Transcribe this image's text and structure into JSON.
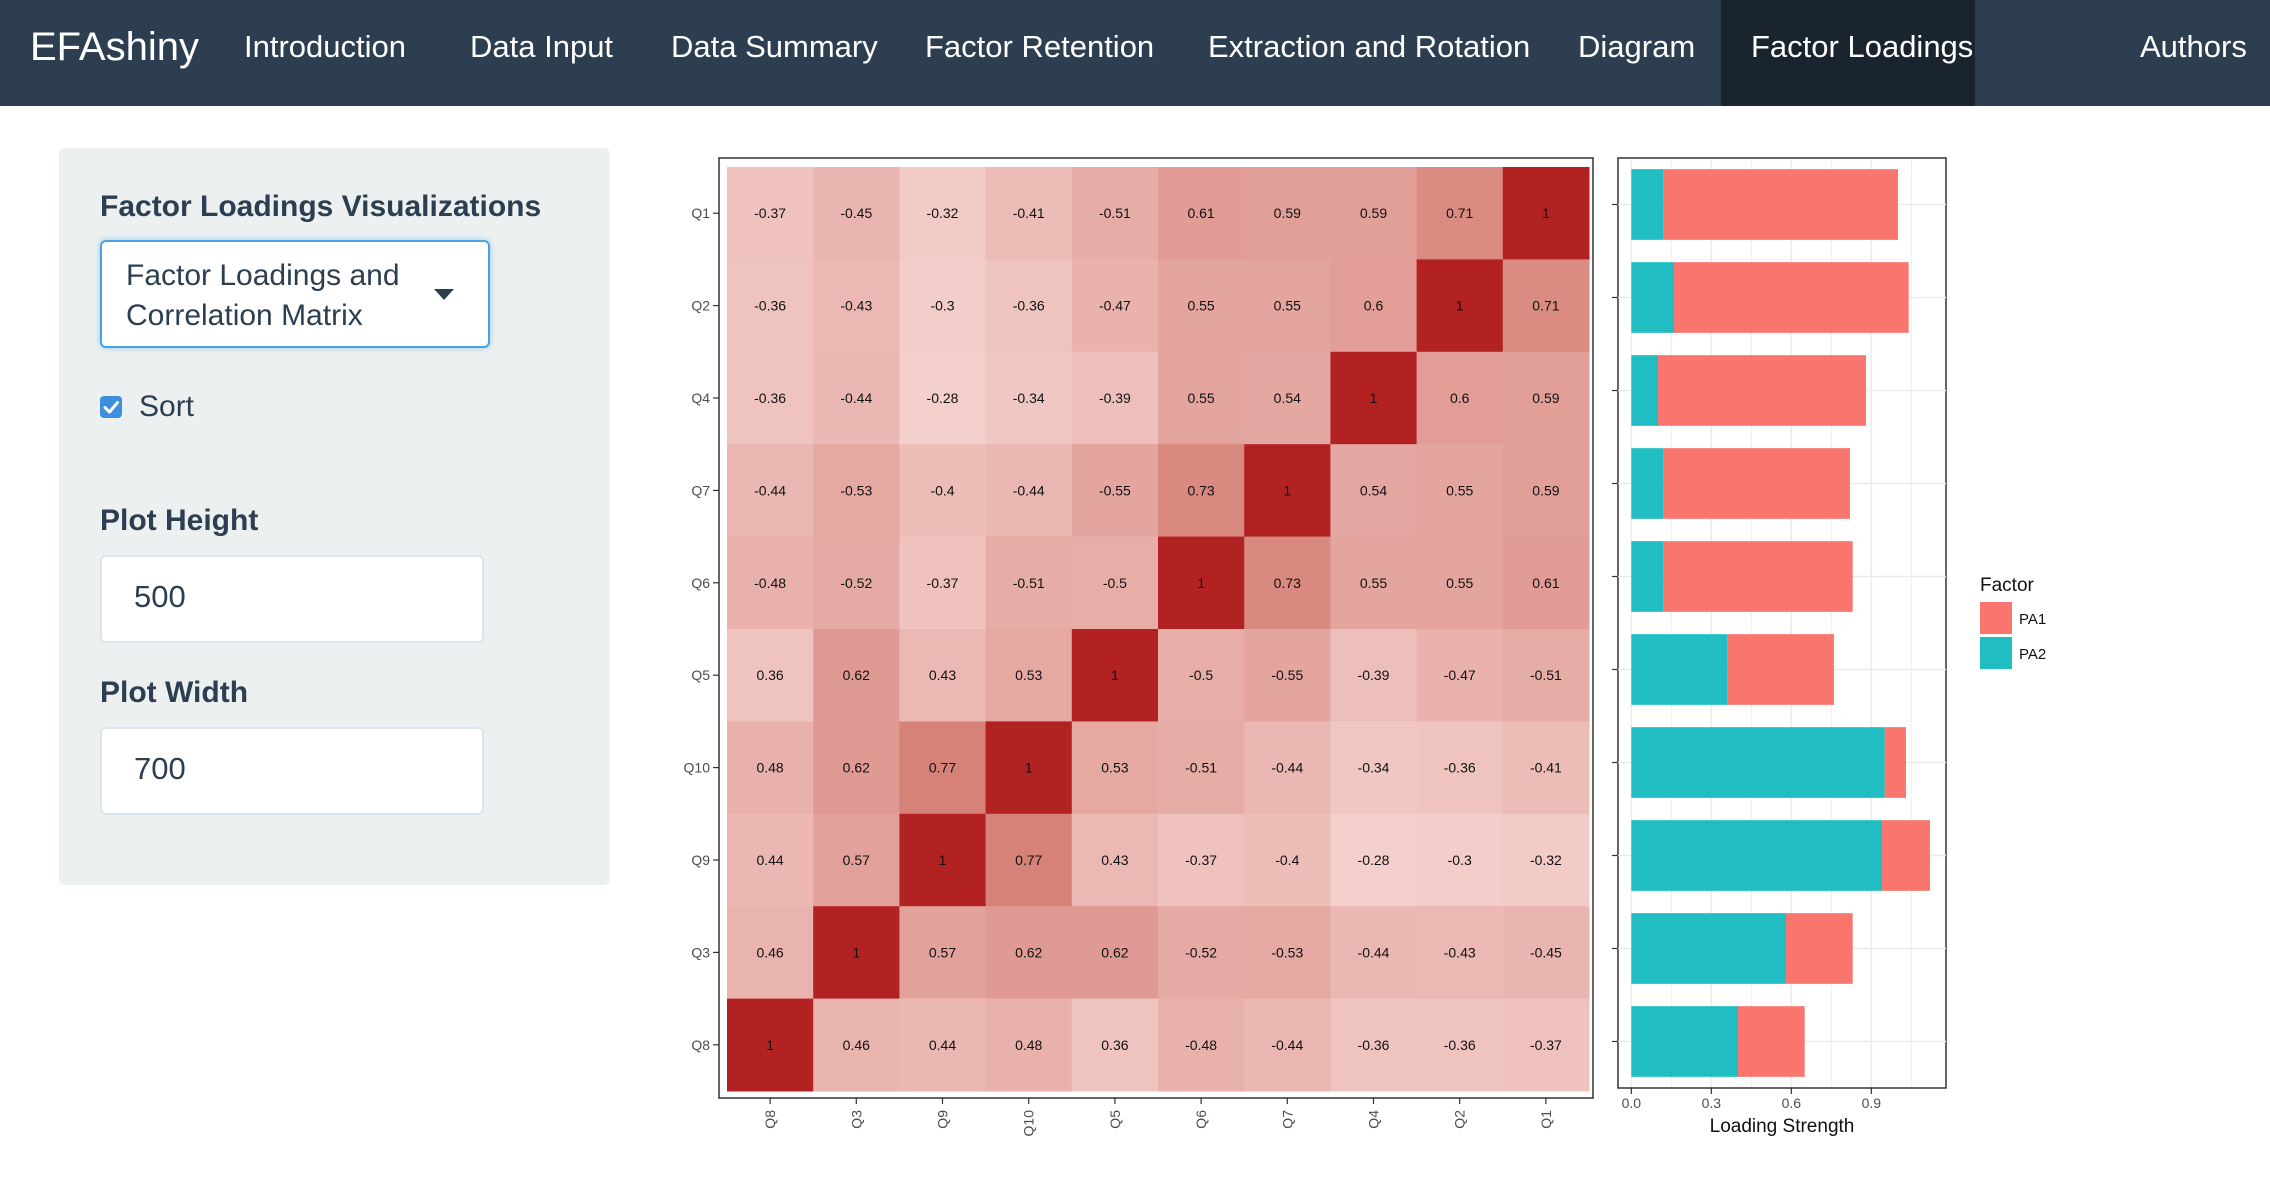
{
  "app": {
    "brand": "EFAshiny",
    "nav": [
      {
        "label": "Introduction"
      },
      {
        "label": "Data Input"
      },
      {
        "label": "Data Summary"
      },
      {
        "label": "Factor Retention"
      },
      {
        "label": "Extraction and Rotation"
      },
      {
        "label": "Diagram"
      },
      {
        "label": "Factor Loadings",
        "active": true
      },
      {
        "label": "Authors"
      }
    ]
  },
  "sidebar": {
    "viz_label": "Factor Loadings Visualizations",
    "viz_select_value": "Factor Loadings and Correlation Matrix",
    "sort_label": "Sort",
    "sort_checked": true,
    "height_label": "Plot Height",
    "height_value": "500",
    "width_label": "Plot Width",
    "width_value": "700"
  },
  "colors": {
    "accent": "#3498db",
    "navbar": "#2c3e50",
    "navbar_active": "#1a242f",
    "pa1": "#f8766d",
    "pa2": "#20bec3",
    "heat_max": "#b22222"
  },
  "chart_data": [
    {
      "type": "heatmap",
      "rows": [
        "Q1",
        "Q2",
        "Q4",
        "Q7",
        "Q6",
        "Q5",
        "Q10",
        "Q9",
        "Q3",
        "Q8"
      ],
      "cols": [
        "Q8",
        "Q3",
        "Q9",
        "Q10",
        "Q5",
        "Q6",
        "Q7",
        "Q4",
        "Q2",
        "Q1"
      ],
      "values": [
        [
          "-0.37",
          "-0.45",
          "-0.32",
          "-0.41",
          "-0.51",
          "0.61",
          "0.59",
          "0.59",
          "0.71",
          "1"
        ],
        [
          "-0.36",
          "-0.43",
          "-0.3",
          "-0.36",
          "-0.47",
          "0.55",
          "0.55",
          "0.6",
          "1",
          "0.71"
        ],
        [
          "-0.36",
          "-0.44",
          "-0.28",
          "-0.34",
          "-0.39",
          "0.55",
          "0.54",
          "1",
          "0.6",
          "0.59"
        ],
        [
          "-0.44",
          "-0.53",
          "-0.4",
          "-0.44",
          "-0.55",
          "0.73",
          "1",
          "0.54",
          "0.55",
          "0.59"
        ],
        [
          "-0.48",
          "-0.52",
          "-0.37",
          "-0.51",
          "-0.5",
          "1",
          "0.73",
          "0.55",
          "0.55",
          "0.61"
        ],
        [
          "0.36",
          "0.62",
          "0.43",
          "0.53",
          "1",
          "-0.5",
          "-0.55",
          "-0.39",
          "-0.47",
          "-0.51"
        ],
        [
          "0.48",
          "0.62",
          "0.77",
          "1",
          "0.53",
          "-0.51",
          "-0.44",
          "-0.34",
          "-0.36",
          "-0.41"
        ],
        [
          "0.44",
          "0.57",
          "1",
          "0.77",
          "0.43",
          "-0.37",
          "-0.4",
          "-0.28",
          "-0.3",
          "-0.32"
        ],
        [
          "0.46",
          "1",
          "0.57",
          "0.62",
          "0.62",
          "-0.52",
          "-0.53",
          "-0.44",
          "-0.43",
          "-0.45"
        ],
        [
          "1",
          "0.46",
          "0.44",
          "0.48",
          "0.36",
          "-0.48",
          "-0.44",
          "-0.36",
          "-0.36",
          "-0.37"
        ]
      ],
      "color_scale": "absolute value, light to dark red",
      "grid": false
    },
    {
      "type": "bar",
      "orientation": "horizontal",
      "stacked": true,
      "categories": [
        "Q1",
        "Q2",
        "Q4",
        "Q7",
        "Q6",
        "Q5",
        "Q10",
        "Q9",
        "Q3",
        "Q8"
      ],
      "series": [
        {
          "name": "PA2",
          "values": [
            0.12,
            0.16,
            0.1,
            0.12,
            0.12,
            0.36,
            0.95,
            0.94,
            0.58,
            0.4
          ]
        },
        {
          "name": "PA1",
          "values": [
            0.88,
            0.88,
            0.78,
            0.7,
            0.71,
            0.4,
            0.08,
            0.18,
            0.25,
            0.25
          ]
        }
      ],
      "xlabel": "Loading Strength",
      "xticks": [
        "0.0",
        "0.3",
        "0.6",
        "0.9"
      ],
      "xlim": [
        -0.05,
        1.18
      ],
      "legend_title": "Factor",
      "legend_position": "right",
      "grid": true
    }
  ]
}
